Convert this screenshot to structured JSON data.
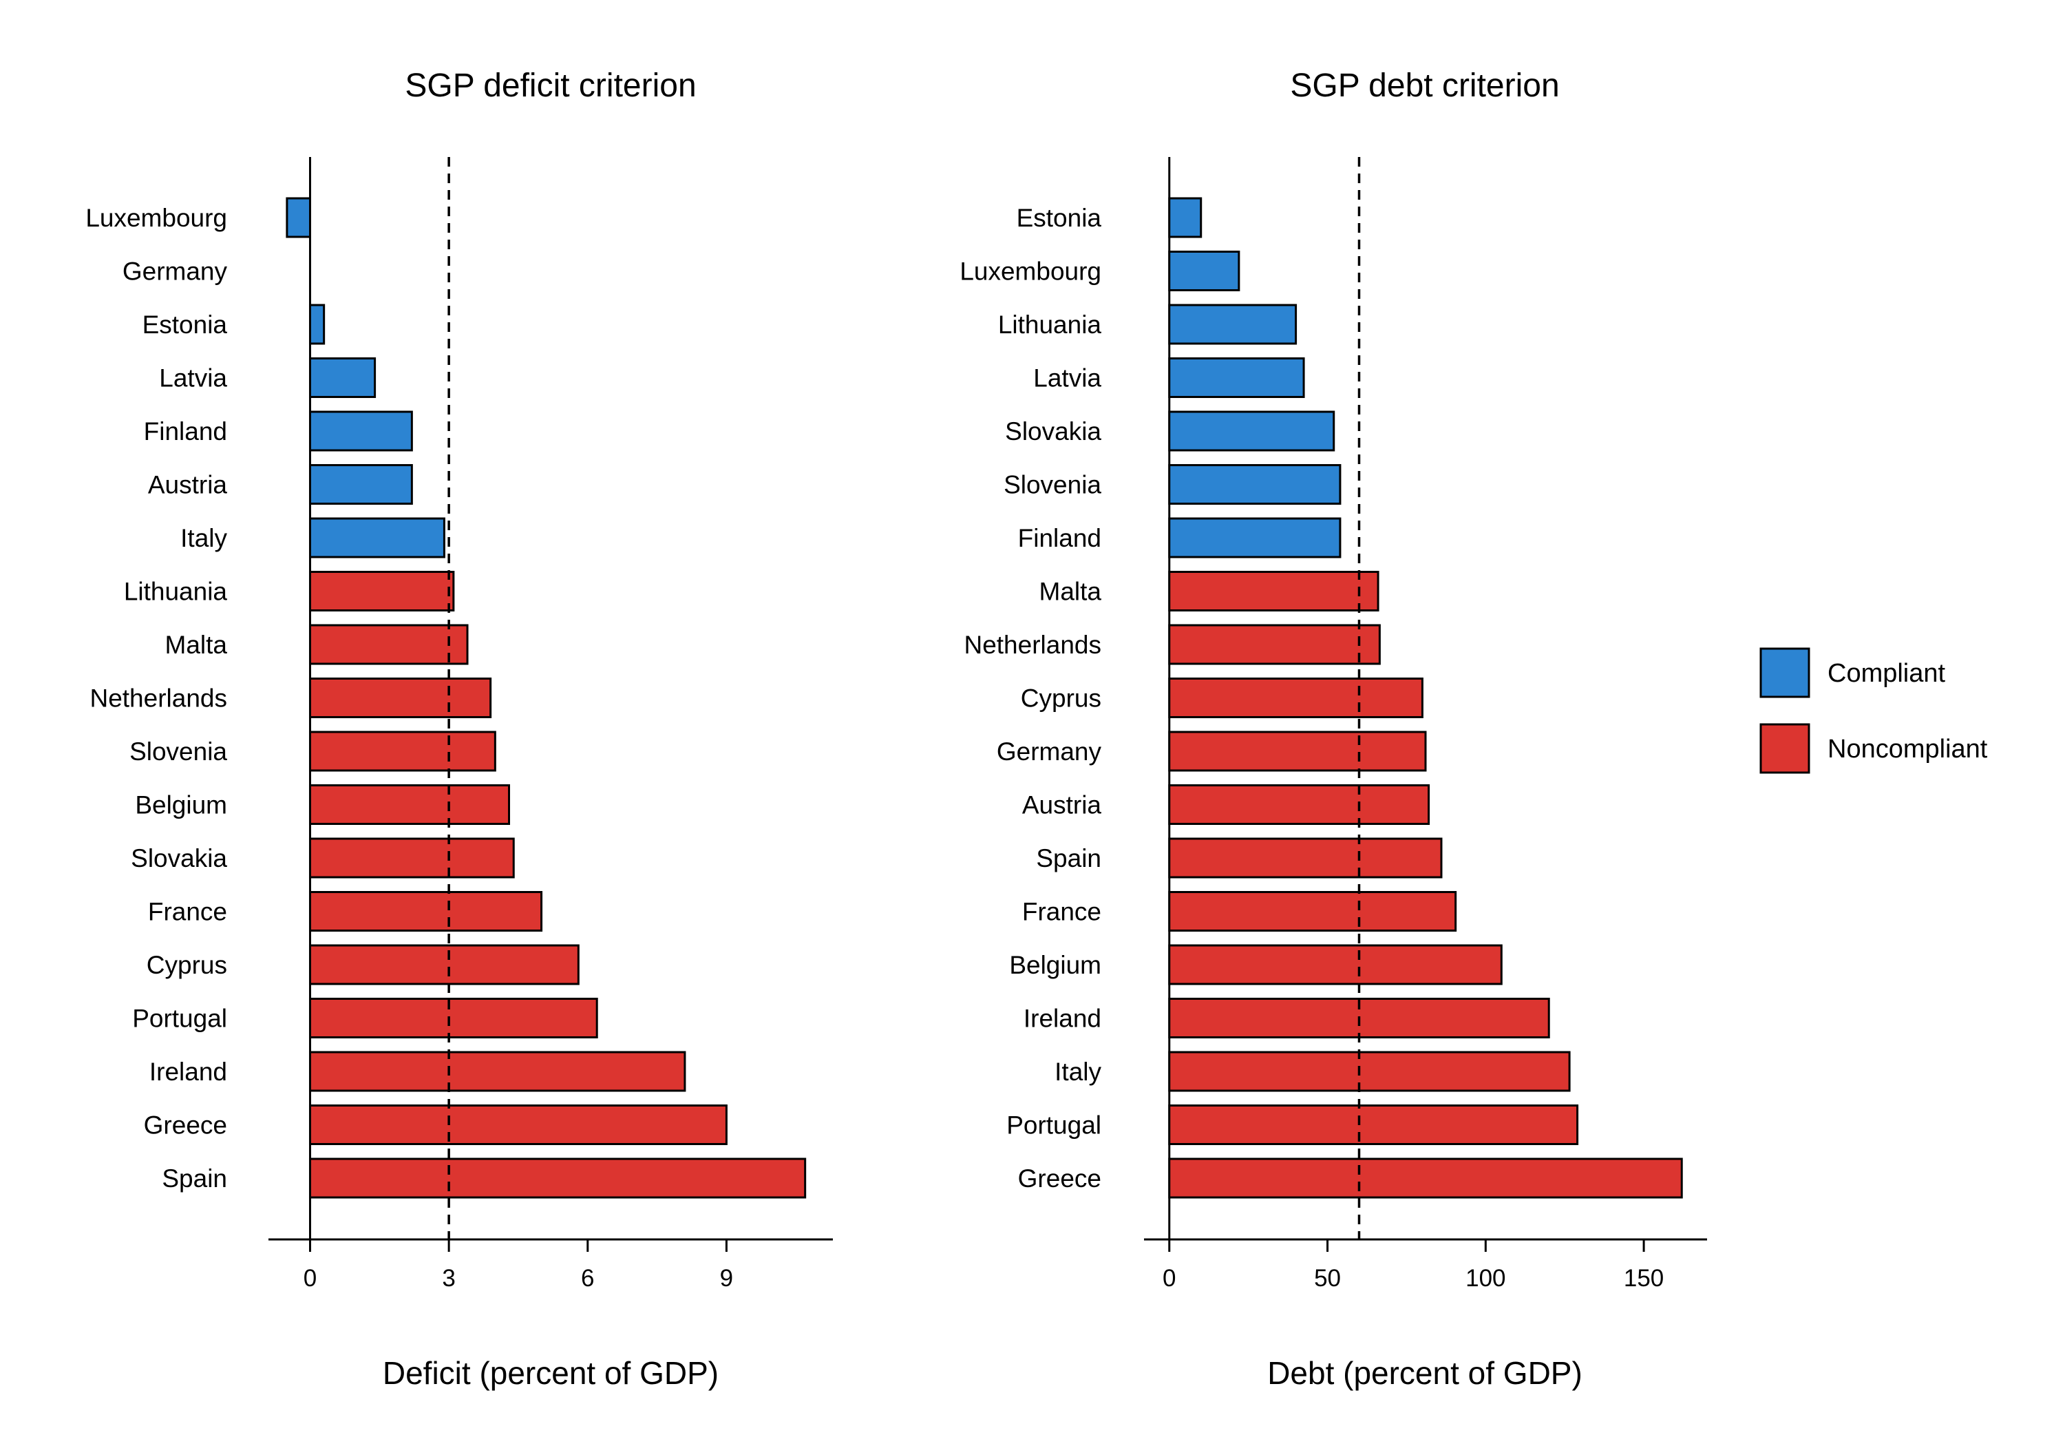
{
  "colors": {
    "compliant": "#2C84D2",
    "noncompliant": "#DC3530",
    "bar_outline": "#000000",
    "reference_line": "#000000"
  },
  "legend": {
    "placement": "right",
    "items": [
      {
        "status": "compliant",
        "label": "Compliant"
      },
      {
        "status": "noncompliant",
        "label": "Noncompliant"
      }
    ]
  },
  "chart_data": [
    {
      "type": "bar",
      "orientation": "horizontal",
      "title": "SGP deficit criterion",
      "xlabel": "Deficit (percent of GDP)",
      "ylabel": "",
      "xlim": [
        -0.9,
        11.3
      ],
      "xticks": [
        0,
        3,
        6,
        9
      ],
      "reference_line": 3,
      "grid": false,
      "categories": [
        "Luxembourg",
        "Germany",
        "Estonia",
        "Latvia",
        "Finland",
        "Austria",
        "Italy",
        "Lithuania",
        "Malta",
        "Netherlands",
        "Slovenia",
        "Belgium",
        "Slovakia",
        "France",
        "Cyprus",
        "Portugal",
        "Ireland",
        "Greece",
        "Spain"
      ],
      "values": [
        -0.5,
        0.0,
        0.3,
        1.4,
        2.2,
        2.2,
        2.9,
        3.1,
        3.4,
        3.9,
        4.0,
        4.3,
        4.4,
        5.0,
        5.8,
        6.2,
        8.1,
        9.0,
        10.7
      ],
      "status": [
        "compliant",
        "compliant",
        "compliant",
        "compliant",
        "compliant",
        "compliant",
        "compliant",
        "noncompliant",
        "noncompliant",
        "noncompliant",
        "noncompliant",
        "noncompliant",
        "noncompliant",
        "noncompliant",
        "noncompliant",
        "noncompliant",
        "noncompliant",
        "noncompliant",
        "noncompliant"
      ]
    },
    {
      "type": "bar",
      "orientation": "horizontal",
      "title": "SGP debt criterion",
      "xlabel": "Debt (percent of GDP)",
      "ylabel": "",
      "xlim": [
        -8,
        170
      ],
      "xticks": [
        0,
        50,
        100,
        150
      ],
      "reference_line": 60,
      "grid": false,
      "categories": [
        "Estonia",
        "Luxembourg",
        "Lithuania",
        "Latvia",
        "Slovakia",
        "Slovenia",
        "Finland",
        "Malta",
        "Netherlands",
        "Cyprus",
        "Germany",
        "Austria",
        "Spain",
        "France",
        "Belgium",
        "Ireland",
        "Italy",
        "Portugal",
        "Greece"
      ],
      "values": [
        10.0,
        22.0,
        40.0,
        42.5,
        52.0,
        54.0,
        54.0,
        66.0,
        66.5,
        80.0,
        81.0,
        82.0,
        86.0,
        90.5,
        105.0,
        120.0,
        126.5,
        129.0,
        162.0
      ],
      "status": [
        "compliant",
        "compliant",
        "compliant",
        "compliant",
        "compliant",
        "compliant",
        "compliant",
        "noncompliant",
        "noncompliant",
        "noncompliant",
        "noncompliant",
        "noncompliant",
        "noncompliant",
        "noncompliant",
        "noncompliant",
        "noncompliant",
        "noncompliant",
        "noncompliant",
        "noncompliant"
      ]
    }
  ]
}
